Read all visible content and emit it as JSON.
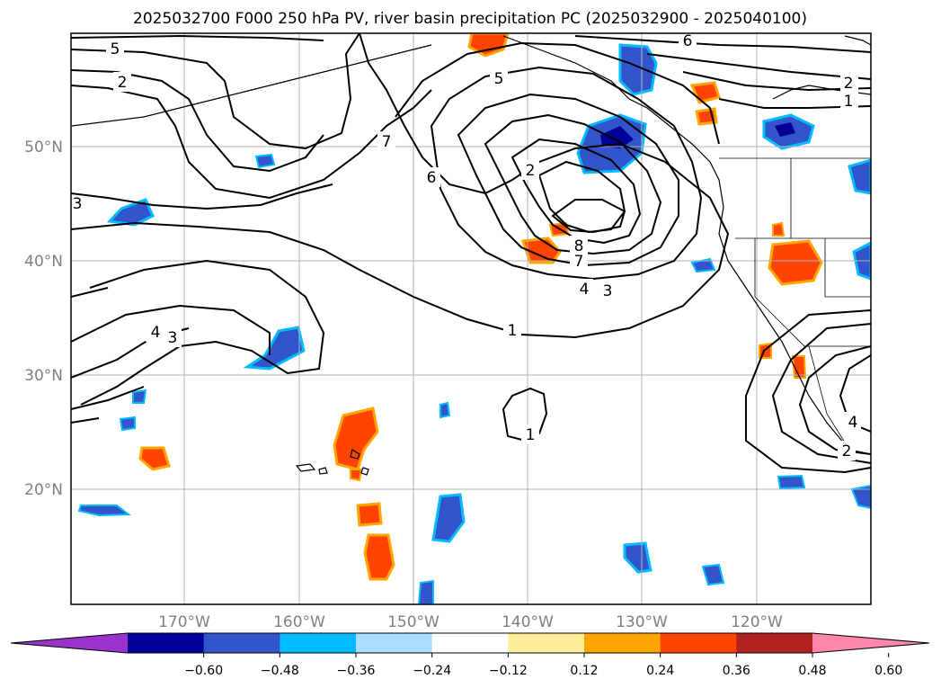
{
  "title": "2025032700 F000 250 hPa PV, river basin precipitation PC (2025032900 - 2025040100)",
  "lat_labels": [
    "50°N",
    "40°N",
    "30°N",
    "20°N"
  ],
  "lon_labels": [
    "170°W",
    "160°W",
    "150°W",
    "140°W",
    "130°W",
    "120°W"
  ],
  "colorbar": {
    "ticks": [
      "−0.60",
      "−0.48",
      "−0.36",
      "−0.24",
      "−0.12",
      "0.12",
      "0.24",
      "0.36",
      "0.48",
      "0.60"
    ],
    "colors": [
      "#9933cc",
      "#000099",
      "#3355cc",
      "#00bbff",
      "#aaddff",
      "#ffffff",
      "#ffee99",
      "#ffa500",
      "#ff4400",
      "#b22222",
      "#ff88aa"
    ]
  },
  "contour_labels": {
    "c1": "5",
    "c2": "2",
    "c3": "3",
    "c4": "6",
    "c5": "2",
    "c6": "1",
    "c7": "5",
    "c8": "7",
    "c9": "6",
    "c10": "2",
    "c11": "8",
    "c12": "7",
    "c13": "4",
    "c14": "3",
    "c15": "1",
    "c16": "4",
    "c17": "3",
    "c18": "1",
    "c19": "2",
    "c20": "4"
  }
}
